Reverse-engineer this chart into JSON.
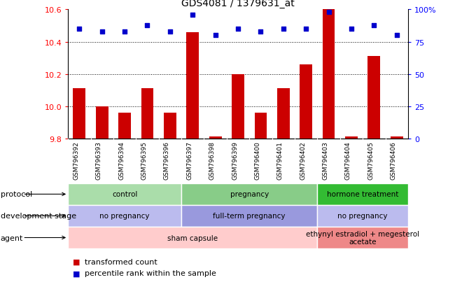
{
  "title": "GDS4081 / 1379631_at",
  "samples": [
    "GSM796392",
    "GSM796393",
    "GSM796394",
    "GSM796395",
    "GSM796396",
    "GSM796397",
    "GSM796398",
    "GSM796399",
    "GSM796400",
    "GSM796401",
    "GSM796402",
    "GSM796403",
    "GSM796404",
    "GSM796405",
    "GSM796406"
  ],
  "bar_values": [
    10.11,
    10.0,
    9.96,
    10.11,
    9.96,
    10.46,
    9.81,
    10.2,
    9.96,
    10.11,
    10.26,
    10.6,
    9.81,
    10.31,
    9.81
  ],
  "dot_values": [
    85,
    83,
    83,
    88,
    83,
    96,
    80,
    85,
    83,
    85,
    85,
    98,
    85,
    88,
    80
  ],
  "ylim_left": [
    9.8,
    10.6
  ],
  "ylim_right": [
    0,
    100
  ],
  "yticks_left": [
    9.8,
    10.0,
    10.2,
    10.4,
    10.6
  ],
  "yticks_right": [
    0,
    25,
    50,
    75,
    100
  ],
  "ytick_labels_right": [
    "0",
    "25",
    "50",
    "75",
    "100%"
  ],
  "bar_color": "#cc0000",
  "dot_color": "#0000cc",
  "protocol_groups": [
    {
      "label": "control",
      "start": 0,
      "end": 4,
      "color": "#aaddaa"
    },
    {
      "label": "pregnancy",
      "start": 5,
      "end": 10,
      "color": "#88cc88"
    },
    {
      "label": "hormone treatment",
      "start": 11,
      "end": 14,
      "color": "#33bb33"
    }
  ],
  "dev_stage_groups": [
    {
      "label": "no pregnancy",
      "start": 0,
      "end": 4,
      "color": "#bbbbee"
    },
    {
      "label": "full-term pregnancy",
      "start": 5,
      "end": 10,
      "color": "#9999dd"
    },
    {
      "label": "no pregnancy",
      "start": 11,
      "end": 14,
      "color": "#bbbbee"
    }
  ],
  "agent_groups": [
    {
      "label": "sham capsule",
      "start": 0,
      "end": 10,
      "color": "#ffcccc"
    },
    {
      "label": "ethynyl estradiol + megesterol\nacetate",
      "start": 11,
      "end": 14,
      "color": "#ee8888"
    }
  ],
  "row_labels": [
    "protocol",
    "development stage",
    "agent"
  ],
  "legend_bar_label": "transformed count",
  "legend_dot_label": "percentile rank within the sample"
}
